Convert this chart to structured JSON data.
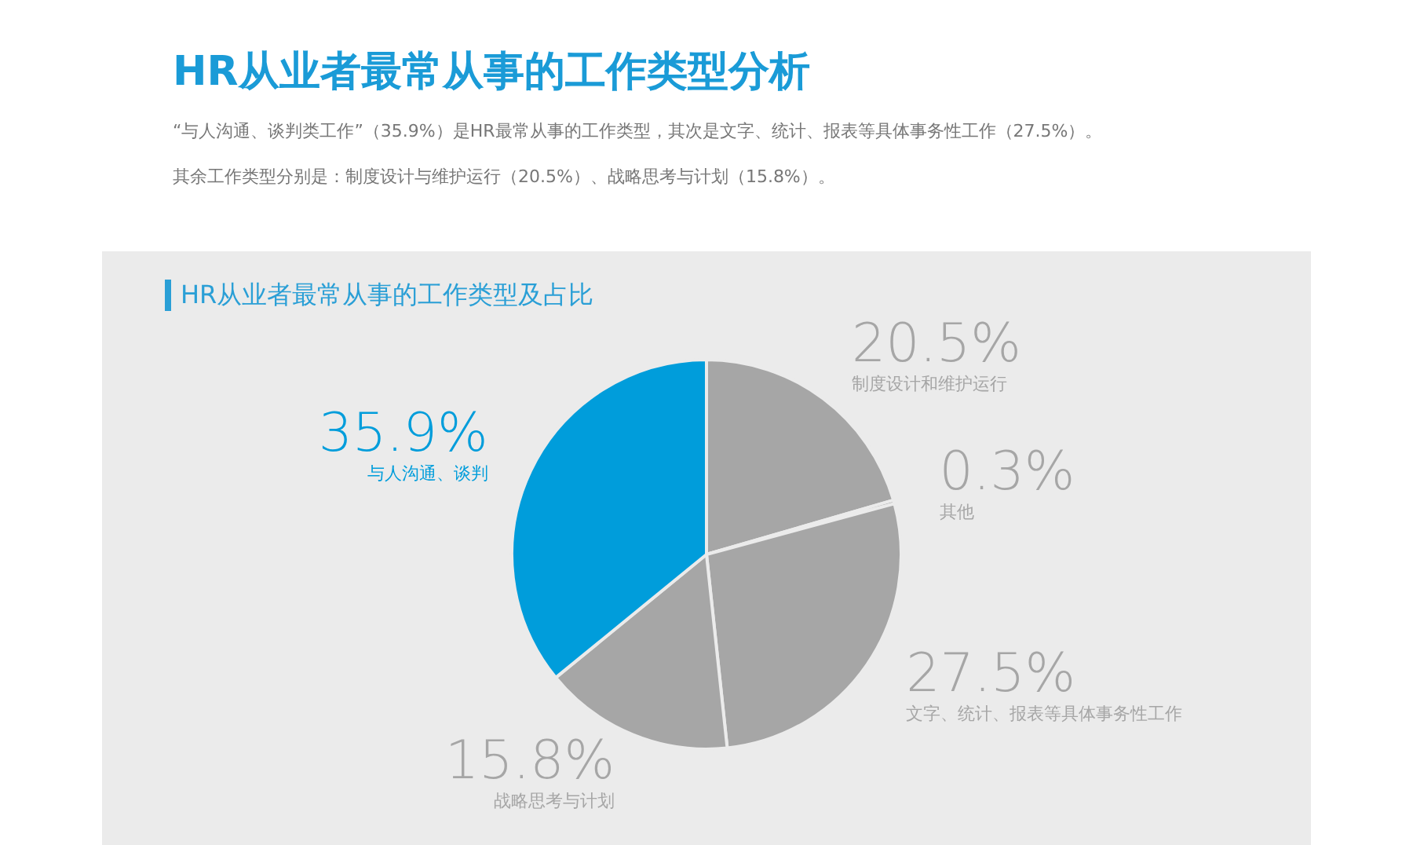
{
  "chart_data": {
    "type": "pie",
    "title": "HR从业者最常从事的工作类型分析",
    "subtitle": "HR从业者最常从事的工作类型及占比",
    "annotations": [
      "“与人沟通、谈判类工作”（35.9%）是HR最常从事的工作类型，其次是文字、统计、报表等具体事务性工作（27.5%）。",
      "其余工作类型分别是：制度设计与维护运行（20.5%）、战略思考与计划（15.8%）。"
    ],
    "categories": [
      "制度设计和维护运行",
      "其他",
      "文字、统计、报表等具体事务性工作",
      "战略思考与计划",
      "与人沟通、谈判"
    ],
    "values": [
      20.5,
      0.3,
      27.5,
      15.8,
      35.9
    ],
    "value_labels": [
      "20.5%",
      "0.3%",
      "27.5%",
      "15.8%",
      "35.9%"
    ],
    "colors": [
      "#a6a6a6",
      "#a6a6a6",
      "#a6a6a6",
      "#a6a6a6",
      "#009ddb"
    ],
    "legend": false
  }
}
